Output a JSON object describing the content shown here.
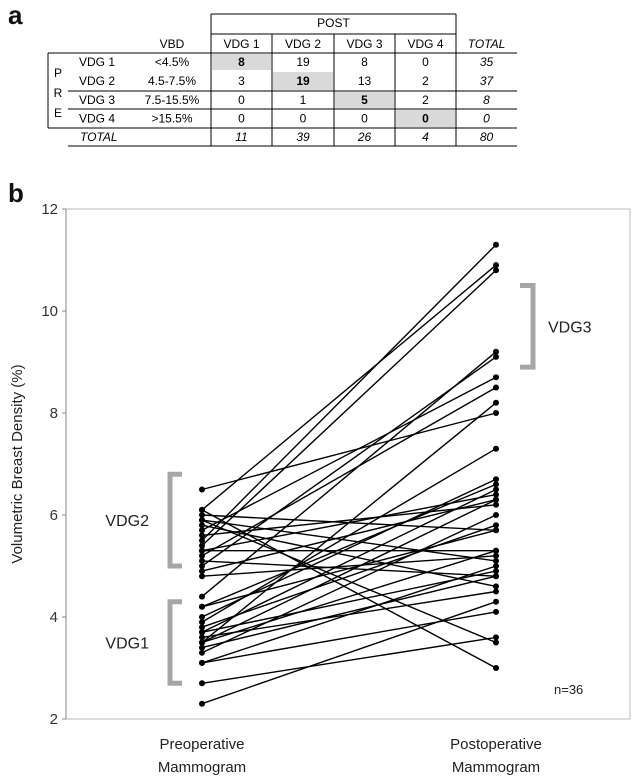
{
  "panel_a_label": "a",
  "panel_b_label": "b",
  "table": {
    "post_header": "POST",
    "pre_letters": [
      "P",
      "R",
      "E"
    ],
    "vbd_header": "VBD",
    "columns": [
      "VDG 1",
      "VDG 2",
      "VDG 3",
      "VDG 4",
      "TOTAL"
    ],
    "rows": [
      {
        "label": "VDG 1",
        "vbd": "<4.5%",
        "cells": [
          "8",
          "19",
          "8",
          "0"
        ],
        "total": "35"
      },
      {
        "label": "VDG 2",
        "vbd": "4.5-7.5%",
        "cells": [
          "3",
          "19",
          "13",
          "2"
        ],
        "total": "37"
      },
      {
        "label": "VDG 3",
        "vbd": "7.5-15.5%",
        "cells": [
          "0",
          "1",
          "5",
          "2"
        ],
        "total": "8"
      },
      {
        "label": "VDG 4",
        "vbd": ">15.5%",
        "cells": [
          "0",
          "0",
          "0",
          "0"
        ],
        "total": "0"
      }
    ],
    "total_row": {
      "label": "TOTAL",
      "cells": [
        "11",
        "39",
        "26",
        "4"
      ],
      "total": "80"
    },
    "highlight_color": "#d9d9d9"
  },
  "chart_data": {
    "type": "line",
    "ylabel": "Volumetric Breast Density (%)",
    "ylim": [
      2,
      12
    ],
    "yticks": [
      "2",
      "4",
      "6",
      "8",
      "10",
      "12"
    ],
    "categories": [
      "Preoperative\nMammogram",
      "Postoperative\nMammogram"
    ],
    "category_lines": [
      [
        "Preoperative",
        "Mammogram"
      ],
      [
        "Postoperative",
        "Mammogram"
      ]
    ],
    "annotation": "n=36",
    "brackets": [
      {
        "label": "VDG1",
        "side": "pre",
        "from": 2.7,
        "to": 4.3
      },
      {
        "label": "VDG2",
        "side": "pre",
        "from": 5.0,
        "to": 6.8
      },
      {
        "label": "VDG3",
        "side": "post",
        "from": 8.9,
        "to": 10.5
      }
    ],
    "bracket_color": "#a6a6a6",
    "pairs": [
      [
        2.3,
        4.3
      ],
      [
        2.7,
        3.6
      ],
      [
        3.1,
        4.1
      ],
      [
        3.1,
        5.0
      ],
      [
        3.3,
        6.0
      ],
      [
        3.4,
        4.8
      ],
      [
        3.5,
        5.3
      ],
      [
        3.5,
        6.3
      ],
      [
        3.5,
        8.2
      ],
      [
        3.6,
        4.5
      ],
      [
        3.7,
        6.5
      ],
      [
        3.7,
        4.9
      ],
      [
        3.8,
        5.8
      ],
      [
        3.9,
        7.3
      ],
      [
        4.0,
        6.7
      ],
      [
        4.2,
        5.7
      ],
      [
        4.2,
        6.6
      ],
      [
        4.4,
        9.2
      ],
      [
        4.8,
        5.2
      ],
      [
        4.9,
        6.3
      ],
      [
        5.0,
        9.1
      ],
      [
        5.1,
        4.8
      ],
      [
        5.2,
        8.5
      ],
      [
        5.3,
        6.4
      ],
      [
        5.3,
        5.3
      ],
      [
        5.4,
        10.8
      ],
      [
        5.5,
        11.3
      ],
      [
        5.6,
        6.2
      ],
      [
        5.7,
        8.7
      ],
      [
        5.8,
        4.6
      ],
      [
        5.9,
        5.1
      ],
      [
        5.9,
        3.5
      ],
      [
        6.0,
        5.7
      ],
      [
        6.1,
        3.0
      ],
      [
        6.1,
        10.9
      ],
      [
        6.5,
        8.0
      ]
    ]
  }
}
